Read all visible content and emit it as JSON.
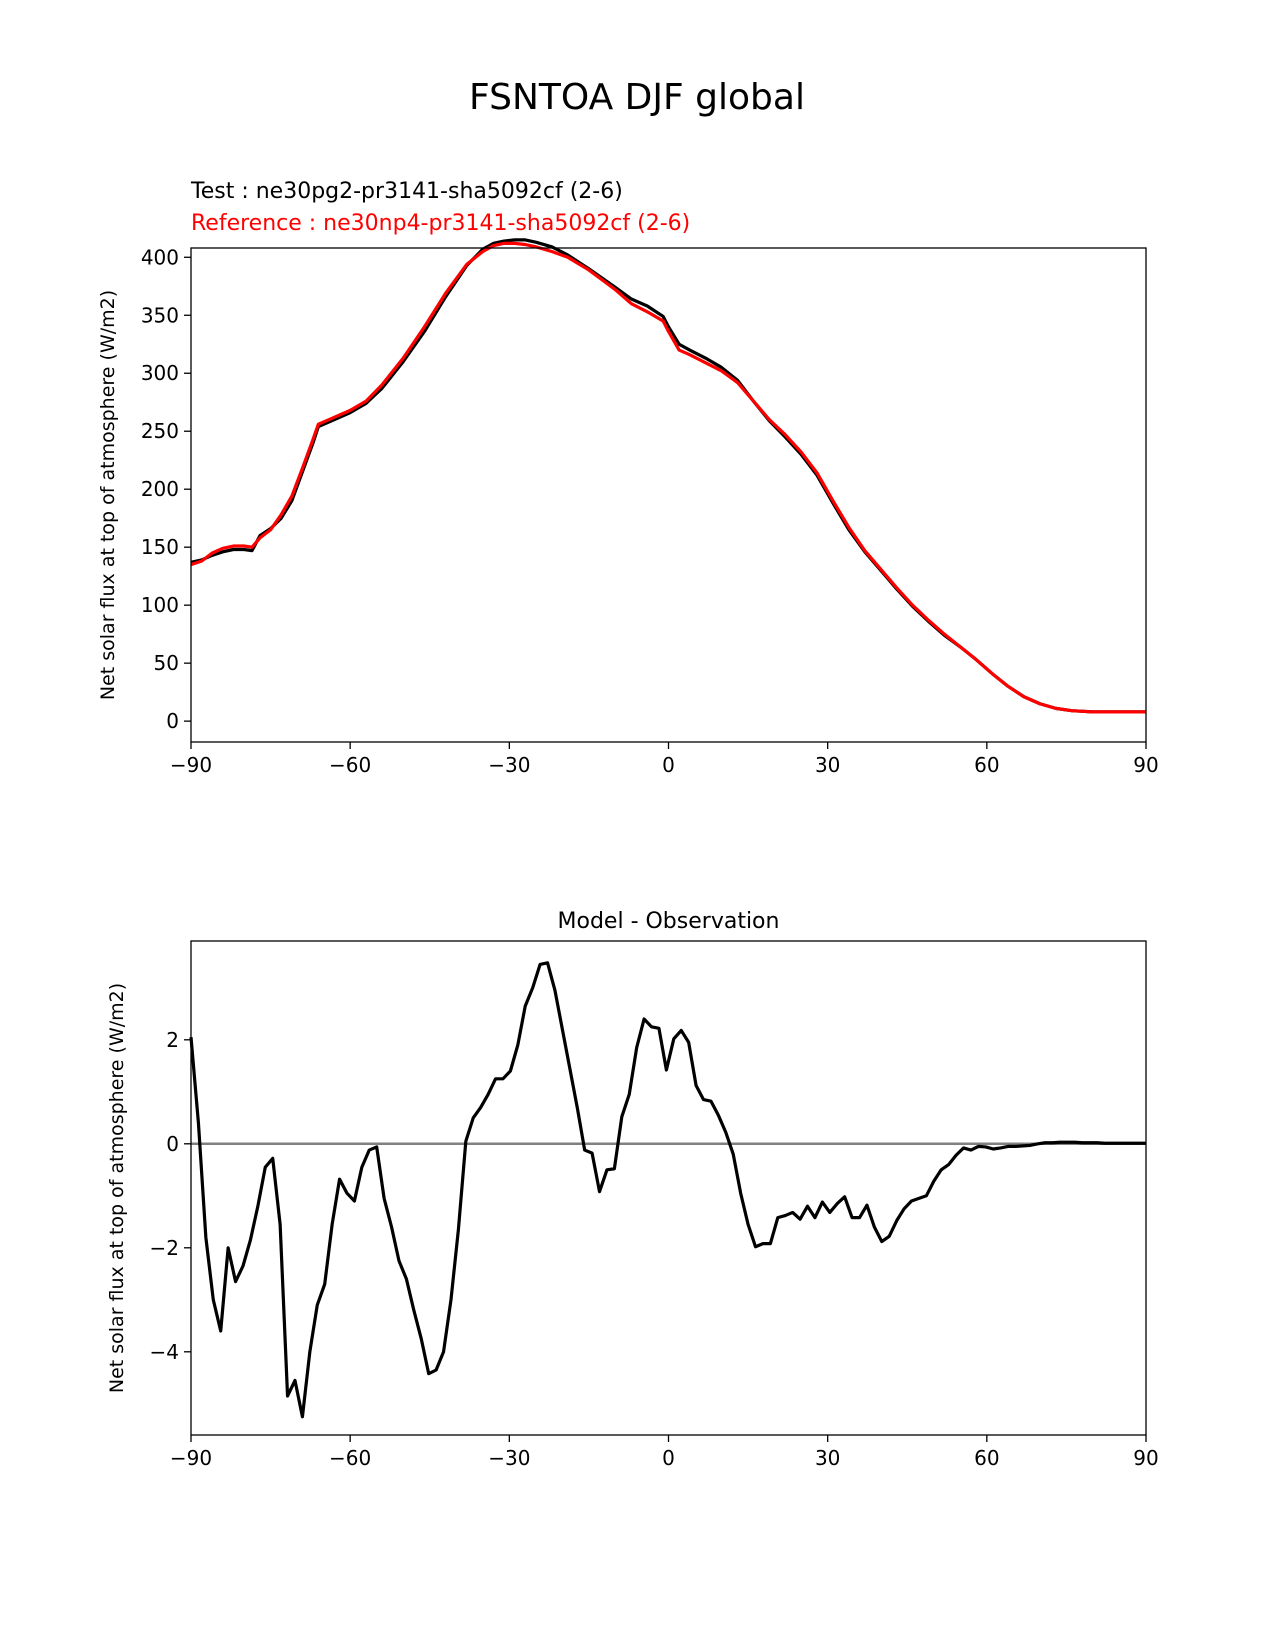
{
  "figure": {
    "title": "FSNTOA DJF global"
  },
  "chart_data": [
    {
      "type": "line",
      "title": "",
      "legend_texts": [
        {
          "text": "Test : ne30pg2-pr3141-sha5092cf (2-6)",
          "color": "#000000"
        },
        {
          "text": "Reference : ne30np4-pr3141-sha5092cf (2-6)",
          "color": "#ff0000"
        }
      ],
      "xlabel": "",
      "ylabel": "Net solar flux at top of atmosphere (W/m2)",
      "xlim": [
        -90,
        90
      ],
      "ylim": [
        -18,
        408
      ],
      "xticks": [
        -90,
        -60,
        -30,
        0,
        30,
        60,
        90
      ],
      "xtick_labels": [
        "−90",
        "−60",
        "−30",
        "0",
        "30",
        "60",
        "90"
      ],
      "yticks": [
        0,
        50,
        100,
        150,
        200,
        250,
        300,
        350,
        400
      ],
      "ytick_labels": [
        "0",
        "50",
        "100",
        "150",
        "200",
        "250",
        "300",
        "350",
        "400"
      ],
      "grid": false,
      "series": [
        {
          "name": "Test : ne30pg2-pr3141-sha5092cf (2-6)",
          "color": "#000000",
          "x": [
            -90,
            -88,
            -86,
            -84,
            -82,
            -80,
            -78.5,
            -77,
            -75,
            -73,
            -71,
            -69,
            -67,
            -66,
            -65,
            -63,
            -60,
            -57,
            -54,
            -50,
            -46,
            -42,
            -38,
            -35,
            -33,
            -31,
            -29,
            -27,
            -25,
            -22,
            -19,
            -15,
            -10,
            -7,
            -4,
            -1,
            0,
            2,
            4,
            7,
            10,
            13,
            16,
            19,
            22,
            25,
            28,
            31,
            34,
            37,
            40,
            43,
            46,
            49,
            52,
            55,
            58,
            61,
            64,
            67,
            70,
            73,
            76,
            80,
            85,
            90
          ],
          "y": [
            137,
            139,
            143,
            146,
            148,
            148,
            147,
            160,
            166,
            175,
            190,
            215,
            240,
            254,
            256,
            260,
            266,
            274,
            287,
            310,
            336,
            366,
            393,
            407,
            412,
            414,
            415,
            415,
            413,
            409,
            402,
            390,
            374,
            364,
            358,
            349,
            340,
            325,
            320,
            313,
            305,
            294,
            276,
            259,
            245,
            230,
            212,
            188,
            165,
            146,
            130,
            114,
            99,
            86,
            74,
            64,
            53,
            41,
            30,
            21,
            15,
            11,
            9,
            8,
            8,
            8
          ],
          "y_note_exact": false
        },
        {
          "name": "Reference : ne30np4-pr3141-sha5092cf (2-6)",
          "color": "#ff0000",
          "x": [
            -90,
            -88,
            -86,
            -84,
            -82,
            -80,
            -78.5,
            -77,
            -75,
            -73,
            -71,
            -69,
            -67,
            -66,
            -65,
            -63,
            -60,
            -57,
            -54,
            -50,
            -46,
            -42,
            -38,
            -35,
            -33,
            -31,
            -29,
            -27,
            -25,
            -22,
            -19,
            -15,
            -10,
            -7,
            -4,
            -1,
            0,
            2,
            4,
            7,
            10,
            13,
            16,
            19,
            22,
            25,
            28,
            31,
            34,
            37,
            40,
            43,
            46,
            49,
            52,
            55,
            58,
            61,
            64,
            67,
            70,
            73,
            76,
            80,
            85,
            90
          ],
          "y": [
            135,
            138,
            145,
            149,
            151,
            151,
            150,
            158,
            165,
            178,
            194,
            218,
            243,
            256,
            258,
            262,
            268,
            276,
            290,
            313,
            340,
            369,
            394,
            405,
            410,
            412,
            412,
            411,
            409,
            405,
            400,
            389,
            372,
            360,
            353,
            345,
            336,
            320,
            316,
            309,
            302,
            292,
            276,
            260,
            247,
            232,
            214,
            190,
            167,
            147,
            131,
            115,
            100,
            87,
            75,
            64,
            53,
            41,
            30,
            21,
            15,
            11,
            9,
            8,
            8,
            8
          ],
          "y_note_exact": false
        }
      ]
    },
    {
      "type": "line",
      "title": "Model - Observation",
      "xlabel": "",
      "ylabel": "Net solar flux at top of atmosphere (W/m2)",
      "xlim": [
        -90,
        90
      ],
      "ylim": [
        -5.6,
        3.9
      ],
      "xticks": [
        -90,
        -60,
        -30,
        0,
        30,
        60,
        90
      ],
      "xtick_labels": [
        "−90",
        "−60",
        "−30",
        "0",
        "30",
        "60",
        "90"
      ],
      "yticks": [
        -4,
        -2,
        0,
        2
      ],
      "ytick_labels": [
        "−4",
        "−2",
        "0",
        "2"
      ],
      "grid": false,
      "zero_line_color": "#808080",
      "series": [
        {
          "name": "",
          "color": "#000000",
          "x": [
            -90,
            -88.6,
            -87.2,
            -85.8,
            -84.4,
            -83,
            -81.6,
            -80.2,
            -78.8,
            -77.4,
            -76,
            -74.6,
            -73.2,
            -71.8,
            -70.4,
            -69,
            -67.6,
            -66.2,
            -64.8,
            -63.4,
            -62,
            -60.6,
            -59.2,
            -57.8,
            -56.4,
            -55,
            -53.6,
            -52.2,
            -50.8,
            -49.4,
            -48,
            -46.6,
            -45.2,
            -43.8,
            -42.4,
            -41,
            -39.6,
            -38.2,
            -36.8,
            -35.4,
            -34,
            -32.6,
            -31.2,
            -29.8,
            -28.4,
            -27,
            -25.6,
            -24.2,
            -22.8,
            -21.4,
            -20,
            -18.6,
            -17.2,
            -15.8,
            -14.4,
            -13,
            -11.6,
            -10.2,
            -8.8,
            -7.4,
            -6,
            -4.6,
            -3.2,
            -1.8,
            -0.4,
            1,
            2.4,
            3.8,
            5.2,
            6.6,
            8,
            9.4,
            10.8,
            12.2,
            13.6,
            15,
            16.4,
            17.8,
            19.2,
            20.6,
            22,
            23.4,
            24.8,
            26.2,
            27.6,
            29,
            30.4,
            31.8,
            33.2,
            34.6,
            36,
            37.4,
            38.8,
            40.2,
            41.6,
            43,
            44.4,
            45.8,
            47.2,
            48.6,
            50,
            51.4,
            52.8,
            54.2,
            55.6,
            57,
            58.4,
            59.8,
            61.2,
            62.6,
            64,
            65.4,
            66.8,
            68.2,
            69.6,
            71,
            72.4,
            73.8,
            75.2,
            76.6,
            78,
            79.4,
            80.8,
            82.2,
            83.6,
            85,
            86.4,
            87.8,
            89.2,
            90
          ],
          "y": [
            2.05,
            0.4,
            -1.8,
            -3.0,
            -3.6,
            -2.0,
            -2.65,
            -2.35,
            -1.85,
            -1.2,
            -0.45,
            -0.28,
            -1.55,
            -4.85,
            -4.55,
            -5.25,
            -4.0,
            -3.1,
            -2.7,
            -1.55,
            -0.68,
            -0.95,
            -1.1,
            -0.45,
            -0.12,
            -0.06,
            -1.05,
            -1.6,
            -2.25,
            -2.6,
            -3.2,
            -3.75,
            -4.42,
            -4.35,
            -4.0,
            -3.0,
            -1.65,
            0.05,
            0.5,
            0.7,
            0.95,
            1.25,
            1.25,
            1.4,
            1.9,
            2.65,
            3.0,
            3.45,
            3.48,
            2.95,
            2.2,
            1.45,
            0.7,
            -0.12,
            -0.18,
            -0.92,
            -0.5,
            -0.48,
            0.52,
            0.95,
            1.85,
            2.4,
            2.25,
            2.22,
            1.42,
            2.02,
            2.18,
            1.95,
            1.12,
            0.85,
            0.82,
            0.55,
            0.22,
            -0.2,
            -0.95,
            -1.55,
            -1.98,
            -1.92,
            -1.92,
            -1.42,
            -1.38,
            -1.32,
            -1.45,
            -1.2,
            -1.42,
            -1.12,
            -1.32,
            -1.15,
            -1.02,
            -1.42,
            -1.42,
            -1.18,
            -1.6,
            -1.88,
            -1.78,
            -1.48,
            -1.25,
            -1.1,
            -1.05,
            -1.0,
            -0.72,
            -0.5,
            -0.4,
            -0.22,
            -0.08,
            -0.12,
            -0.05,
            -0.06,
            -0.1,
            -0.08,
            -0.05,
            -0.05,
            -0.04,
            -0.03,
            0.0,
            0.02,
            0.02,
            0.03,
            0.03,
            0.03,
            0.02,
            0.02,
            0.02,
            0.01,
            0.01,
            0.01,
            0.01,
            0.01,
            0.01,
            0.01
          ]
        }
      ]
    }
  ]
}
